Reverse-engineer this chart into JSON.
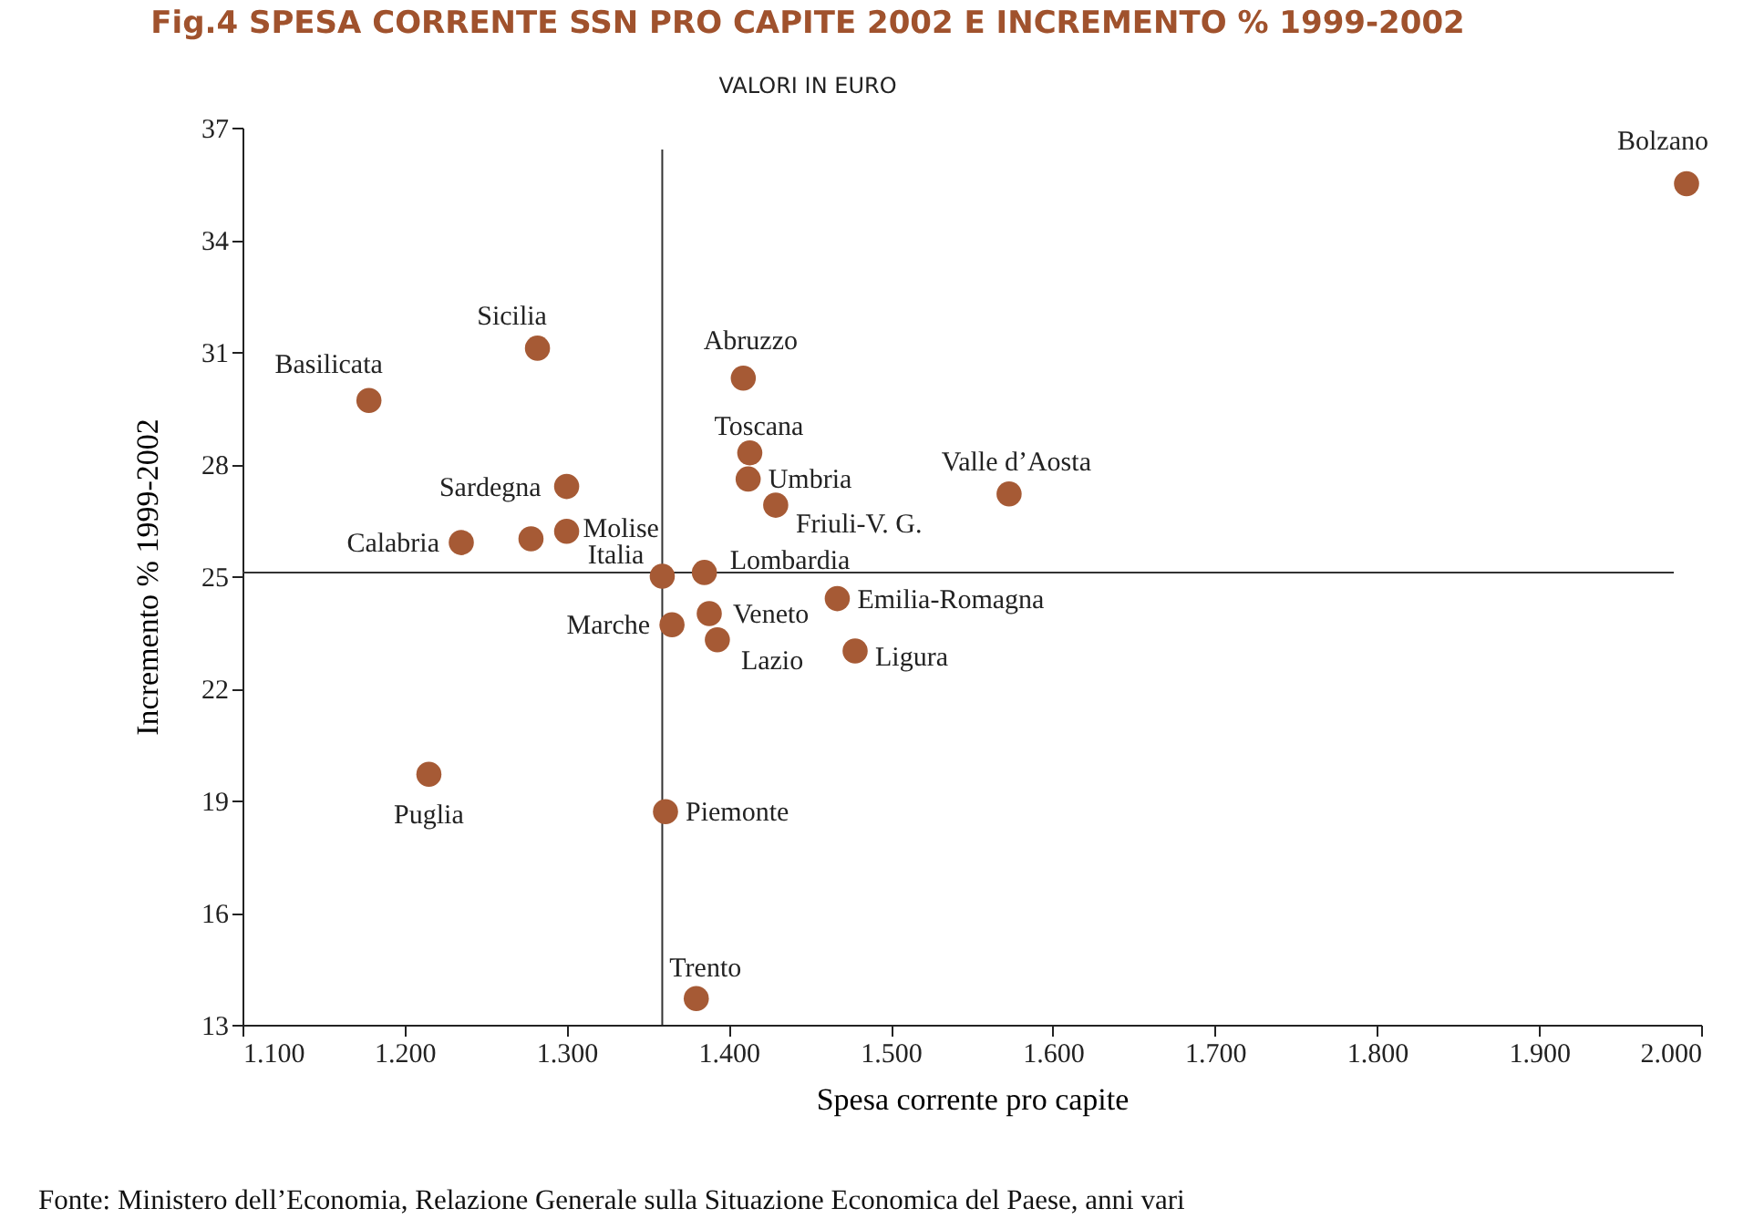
{
  "chart_data": {
    "type": "scatter",
    "title": "Fig.4 SPESA CORRENTE SSN PRO CAPITE 2002 E INCREMENTO % 1999-2002",
    "subtitle": "VALORI IN EURO",
    "xlabel": "Spesa corrente pro capite",
    "ylabel": "Incremento % 1999-2002",
    "x": [
      1991,
      1282,
      1178,
      1409,
      1413,
      1412,
      1429,
      1573,
      1300,
      1235,
      1278,
      1300,
      1359,
      1385,
      1467,
      1388,
      1365,
      1393,
      1478,
      1215,
      1361,
      1380
    ],
    "series": [
      {
        "color": "#a65a35",
        "values": [
          35.5,
          31.1,
          29.7,
          30.3,
          28.3,
          27.6,
          26.9,
          27.2,
          27.4,
          25.9,
          26.0,
          26.2,
          25.0,
          25.1,
          24.4,
          24.0,
          23.7,
          23.3,
          23.0,
          19.7,
          18.7,
          13.7
        ]
      }
    ],
    "marker": "circle",
    "xlim": [
      1100,
      2000
    ],
    "ylim": [
      13,
      37
    ],
    "xticks": [
      {
        "value": 1100,
        "label": "1.100"
      },
      {
        "value": 1200,
        "label": "1.200"
      },
      {
        "value": 1300,
        "label": "1.300"
      },
      {
        "value": 1400,
        "label": "1.400"
      },
      {
        "value": 1500,
        "label": "1.500"
      },
      {
        "value": 1600,
        "label": "1.600"
      },
      {
        "value": 1700,
        "label": "1.700"
      },
      {
        "value": 1800,
        "label": "1.800"
      },
      {
        "value": 1900,
        "label": "1.900"
      },
      {
        "value": 2000,
        "label": "2.000"
      }
    ],
    "yticks": [
      13,
      16,
      19,
      22,
      25,
      28,
      31,
      34,
      37
    ],
    "grid": false,
    "ref_lines": [
      {
        "axis": "x",
        "value": 1359,
        "color": "#333333"
      },
      {
        "axis": "y",
        "value": 25.1,
        "color": "#333333"
      }
    ],
    "annotations": [
      {
        "text": "Bolzano",
        "x": 1991,
        "y": 35.5
      },
      {
        "text": "Sicilia",
        "x": 1282,
        "y": 31.1
      },
      {
        "text": "Basilicata",
        "x": 1178,
        "y": 29.7
      },
      {
        "text": "Abruzzo",
        "x": 1409,
        "y": 30.3
      },
      {
        "text": "Toscana",
        "x": 1413,
        "y": 28.3
      },
      {
        "text": "Umbria",
        "x": 1412,
        "y": 27.6
      },
      {
        "text": "Friuli-V. G.",
        "x": 1429,
        "y": 26.9
      },
      {
        "text": "Valle d’Aosta",
        "x": 1573,
        "y": 27.2
      },
      {
        "text": "Sardegna",
        "x": 1300,
        "y": 27.4
      },
      {
        "text": "Calabria",
        "x": 1235,
        "y": 25.9
      },
      {
        "text": "Molise",
        "x": 1300,
        "y": 26.2
      },
      {
        "text": "Italia",
        "x": 1359,
        "y": 25.0
      },
      {
        "text": "Lombardia",
        "x": 1385,
        "y": 25.1
      },
      {
        "text": "Emilia-Romagna",
        "x": 1467,
        "y": 24.4
      },
      {
        "text": "Veneto",
        "x": 1388,
        "y": 24.0
      },
      {
        "text": "Marche",
        "x": 1365,
        "y": 23.7
      },
      {
        "text": "Lazio",
        "x": 1393,
        "y": 23.3
      },
      {
        "text": "Ligura",
        "x": 1478,
        "y": 23.0
      },
      {
        "text": "Puglia",
        "x": 1215,
        "y": 19.7
      },
      {
        "text": "Piemonte",
        "x": 1361,
        "y": 18.7
      },
      {
        "text": "Trento",
        "x": 1380,
        "y": 13.7
      },
      "Fonte: Ministero dell’Economia, Relazione Generale sulla Situazione Economica del Paese, anni vari"
    ]
  }
}
